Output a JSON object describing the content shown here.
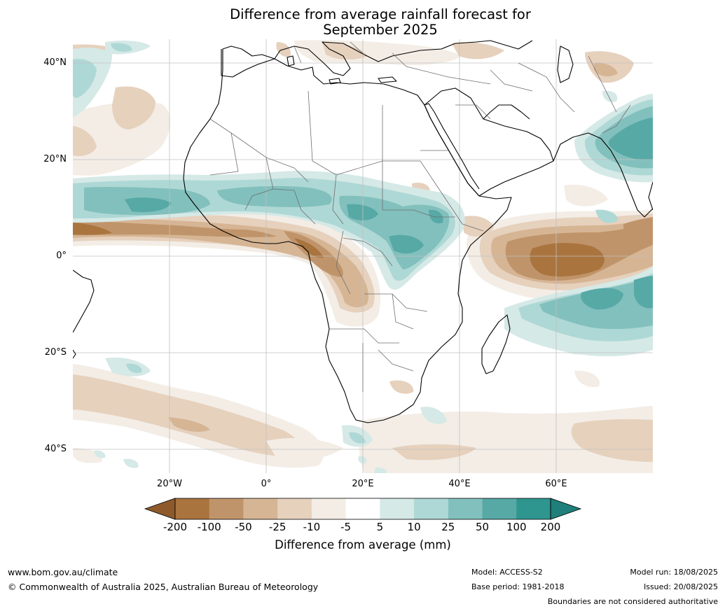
{
  "title_line1": "Difference from average rainfall forecast for",
  "title_line2": "September 2025",
  "lat_labels": [
    "40°N",
    "20°N",
    "0°",
    "20°S",
    "40°S"
  ],
  "lon_labels": [
    "20°W",
    "0°",
    "20°E",
    "40°E",
    "60°E"
  ],
  "legend": {
    "title": "Difference from average (mm)",
    "ticks": [
      "-200",
      "-100",
      "-50",
      "-25",
      "-10",
      "-5",
      "5",
      "10",
      "25",
      "50",
      "100",
      "200"
    ],
    "colors": [
      "#8e5a2b",
      "#aa743e",
      "#c0946a",
      "#d6b594",
      "#e6d1bd",
      "#f3ede6",
      "#ffffff",
      "#d5e9e7",
      "#aed8d5",
      "#82c0bd",
      "#57a9a6",
      "#2f958f",
      "#1f7f7a"
    ]
  },
  "footer": {
    "website": "www.bom.gov.au/climate",
    "copyright": "© Commonwealth of Australia 2025, Australian Bureau of Meteorology",
    "model": "Model: ACCESS-S2",
    "base_period": "Base period: 1981-2018",
    "model_run": "Model run: 18/08/2025",
    "issued": "Issued: 20/08/2025",
    "disclaimer": "Boundaries are not considered authoritative"
  }
}
